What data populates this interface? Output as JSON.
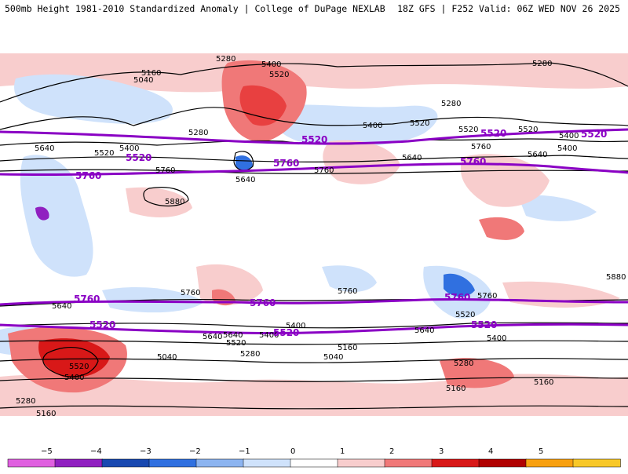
{
  "header": {
    "title_left": "500mb Height 1981-2010 Standardized Anomaly | College of DuPage NEXLAB",
    "title_right": "18Z GFS | F252 Valid: 06Z WED NOV 26 2025"
  },
  "map": {
    "contour_labels": [
      {
        "text": "5280"
      },
      {
        "text": "5400"
      },
      {
        "text": "5520"
      },
      {
        "text": "5160"
      },
      {
        "text": "5040"
      },
      {
        "text": "5280"
      },
      {
        "text": "5640"
      },
      {
        "text": "5520"
      },
      {
        "text": "5400"
      },
      {
        "text": "5760"
      },
      {
        "text": "5640"
      },
      {
        "text": "5880"
      },
      {
        "text": "5760"
      },
      {
        "text": "5400"
      },
      {
        "text": "5520"
      },
      {
        "text": "5280"
      },
      {
        "text": "5640"
      },
      {
        "text": "5760"
      },
      {
        "text": "5280"
      },
      {
        "text": "5400"
      },
      {
        "text": "5520"
      },
      {
        "text": "5640"
      },
      {
        "text": "5400"
      },
      {
        "text": "5880"
      },
      {
        "text": "5760"
      },
      {
        "text": "5640"
      },
      {
        "text": "5760"
      },
      {
        "text": "5640"
      },
      {
        "text": "5400"
      },
      {
        "text": "5520"
      },
      {
        "text": "5280"
      },
      {
        "text": "5160"
      },
      {
        "text": "5040"
      },
      {
        "text": "5520"
      },
      {
        "text": "5400"
      },
      {
        "text": "5280"
      },
      {
        "text": "5160"
      },
      {
        "text": "5040"
      },
      {
        "text": "5640"
      },
      {
        "text": "5520"
      },
      {
        "text": "5400"
      },
      {
        "text": "5280"
      },
      {
        "text": "5160"
      },
      {
        "text": "5160"
      },
      {
        "text": "5760"
      },
      {
        "text": "5520"
      },
      {
        "text": "5400"
      },
      {
        "text": "5640"
      }
    ],
    "purple_labels": [
      {
        "text": "5520"
      },
      {
        "text": "5760"
      },
      {
        "text": "5520"
      },
      {
        "text": "5760"
      },
      {
        "text": "5520"
      },
      {
        "text": "5760"
      },
      {
        "text": "5760"
      },
      {
        "text": "5520"
      },
      {
        "text": "5760"
      },
      {
        "text": "5520"
      },
      {
        "text": "5760"
      },
      {
        "text": "5520"
      },
      {
        "text": "5520"
      }
    ]
  },
  "colorbar": {
    "ticks": [
      "−5",
      "−4",
      "−3",
      "−2",
      "−1",
      "0",
      "1",
      "2",
      "3",
      "4",
      "5"
    ],
    "colors": [
      "#e060e0",
      "#9020c0",
      "#1848b0",
      "#3070e0",
      "#8cb4f0",
      "#cfe2fb",
      "#ffffff",
      "#f8cdcd",
      "#f07878",
      "#d81818",
      "#b00000",
      "#f8a010",
      "#f8c828"
    ]
  }
}
